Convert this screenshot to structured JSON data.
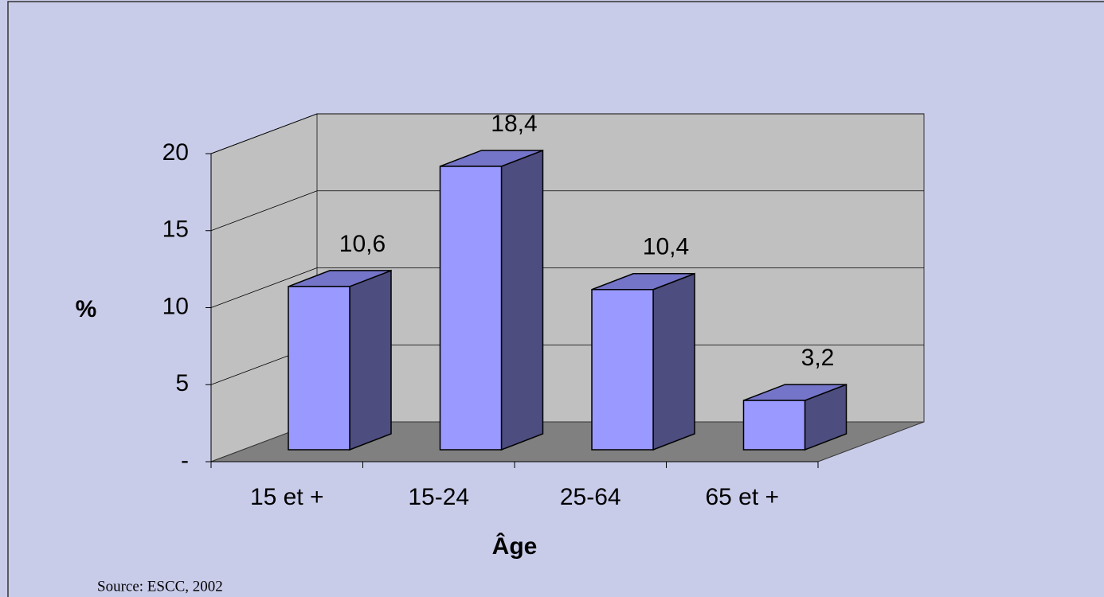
{
  "chart_data": {
    "type": "bar3d",
    "categories": [
      "15 et +",
      "15-24",
      "25-64",
      "65 et +"
    ],
    "values": [
      10.6,
      18.4,
      10.4,
      3.2
    ],
    "value_labels": [
      "10,6",
      "18,4",
      "10,4",
      "3,2"
    ],
    "color": "#9999ff",
    "ylim": [
      0,
      20
    ],
    "yticks": [
      {
        "value": 0,
        "label": "-"
      },
      5,
      10,
      15,
      20
    ],
    "ylabel": "%",
    "xlabel": "Âge",
    "grid": true,
    "source": "Source: ESCC, 2002"
  }
}
